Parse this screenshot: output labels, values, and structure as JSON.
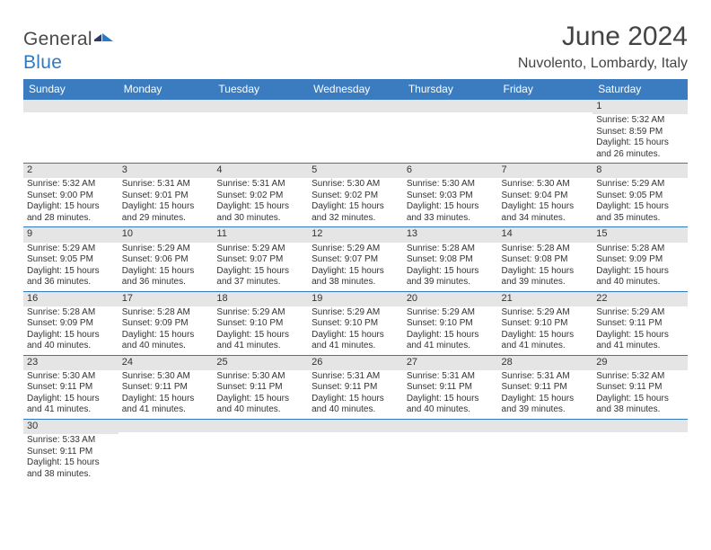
{
  "brand": {
    "part1": "General",
    "part2": "Blue"
  },
  "header": {
    "title": "June 2024",
    "location": "Nuvolento, Lombardy, Italy"
  },
  "colors": {
    "header_bg": "#3a7cbf",
    "header_text": "#ffffff",
    "daynum_bg": "#e5e5e5",
    "divider": "#2f7abf",
    "text": "#333333",
    "title_text": "#444444"
  },
  "weekdays": [
    "Sunday",
    "Monday",
    "Tuesday",
    "Wednesday",
    "Thursday",
    "Friday",
    "Saturday"
  ],
  "weeks": [
    [
      {
        "n": "",
        "lines": []
      },
      {
        "n": "",
        "lines": []
      },
      {
        "n": "",
        "lines": []
      },
      {
        "n": "",
        "lines": []
      },
      {
        "n": "",
        "lines": []
      },
      {
        "n": "",
        "lines": []
      },
      {
        "n": "1",
        "lines": [
          "Sunrise: 5:32 AM",
          "Sunset: 8:59 PM",
          "Daylight: 15 hours",
          "and 26 minutes."
        ]
      }
    ],
    [
      {
        "n": "2",
        "lines": [
          "Sunrise: 5:32 AM",
          "Sunset: 9:00 PM",
          "Daylight: 15 hours",
          "and 28 minutes."
        ]
      },
      {
        "n": "3",
        "lines": [
          "Sunrise: 5:31 AM",
          "Sunset: 9:01 PM",
          "Daylight: 15 hours",
          "and 29 minutes."
        ]
      },
      {
        "n": "4",
        "lines": [
          "Sunrise: 5:31 AM",
          "Sunset: 9:02 PM",
          "Daylight: 15 hours",
          "and 30 minutes."
        ]
      },
      {
        "n": "5",
        "lines": [
          "Sunrise: 5:30 AM",
          "Sunset: 9:02 PM",
          "Daylight: 15 hours",
          "and 32 minutes."
        ]
      },
      {
        "n": "6",
        "lines": [
          "Sunrise: 5:30 AM",
          "Sunset: 9:03 PM",
          "Daylight: 15 hours",
          "and 33 minutes."
        ]
      },
      {
        "n": "7",
        "lines": [
          "Sunrise: 5:30 AM",
          "Sunset: 9:04 PM",
          "Daylight: 15 hours",
          "and 34 minutes."
        ]
      },
      {
        "n": "8",
        "lines": [
          "Sunrise: 5:29 AM",
          "Sunset: 9:05 PM",
          "Daylight: 15 hours",
          "and 35 minutes."
        ]
      }
    ],
    [
      {
        "n": "9",
        "lines": [
          "Sunrise: 5:29 AM",
          "Sunset: 9:05 PM",
          "Daylight: 15 hours",
          "and 36 minutes."
        ]
      },
      {
        "n": "10",
        "lines": [
          "Sunrise: 5:29 AM",
          "Sunset: 9:06 PM",
          "Daylight: 15 hours",
          "and 36 minutes."
        ]
      },
      {
        "n": "11",
        "lines": [
          "Sunrise: 5:29 AM",
          "Sunset: 9:07 PM",
          "Daylight: 15 hours",
          "and 37 minutes."
        ]
      },
      {
        "n": "12",
        "lines": [
          "Sunrise: 5:29 AM",
          "Sunset: 9:07 PM",
          "Daylight: 15 hours",
          "and 38 minutes."
        ]
      },
      {
        "n": "13",
        "lines": [
          "Sunrise: 5:28 AM",
          "Sunset: 9:08 PM",
          "Daylight: 15 hours",
          "and 39 minutes."
        ]
      },
      {
        "n": "14",
        "lines": [
          "Sunrise: 5:28 AM",
          "Sunset: 9:08 PM",
          "Daylight: 15 hours",
          "and 39 minutes."
        ]
      },
      {
        "n": "15",
        "lines": [
          "Sunrise: 5:28 AM",
          "Sunset: 9:09 PM",
          "Daylight: 15 hours",
          "and 40 minutes."
        ]
      }
    ],
    [
      {
        "n": "16",
        "lines": [
          "Sunrise: 5:28 AM",
          "Sunset: 9:09 PM",
          "Daylight: 15 hours",
          "and 40 minutes."
        ]
      },
      {
        "n": "17",
        "lines": [
          "Sunrise: 5:28 AM",
          "Sunset: 9:09 PM",
          "Daylight: 15 hours",
          "and 40 minutes."
        ]
      },
      {
        "n": "18",
        "lines": [
          "Sunrise: 5:29 AM",
          "Sunset: 9:10 PM",
          "Daylight: 15 hours",
          "and 41 minutes."
        ]
      },
      {
        "n": "19",
        "lines": [
          "Sunrise: 5:29 AM",
          "Sunset: 9:10 PM",
          "Daylight: 15 hours",
          "and 41 minutes."
        ]
      },
      {
        "n": "20",
        "lines": [
          "Sunrise: 5:29 AM",
          "Sunset: 9:10 PM",
          "Daylight: 15 hours",
          "and 41 minutes."
        ]
      },
      {
        "n": "21",
        "lines": [
          "Sunrise: 5:29 AM",
          "Sunset: 9:10 PM",
          "Daylight: 15 hours",
          "and 41 minutes."
        ]
      },
      {
        "n": "22",
        "lines": [
          "Sunrise: 5:29 AM",
          "Sunset: 9:11 PM",
          "Daylight: 15 hours",
          "and 41 minutes."
        ]
      }
    ],
    [
      {
        "n": "23",
        "lines": [
          "Sunrise: 5:30 AM",
          "Sunset: 9:11 PM",
          "Daylight: 15 hours",
          "and 41 minutes."
        ]
      },
      {
        "n": "24",
        "lines": [
          "Sunrise: 5:30 AM",
          "Sunset: 9:11 PM",
          "Daylight: 15 hours",
          "and 41 minutes."
        ]
      },
      {
        "n": "25",
        "lines": [
          "Sunrise: 5:30 AM",
          "Sunset: 9:11 PM",
          "Daylight: 15 hours",
          "and 40 minutes."
        ]
      },
      {
        "n": "26",
        "lines": [
          "Sunrise: 5:31 AM",
          "Sunset: 9:11 PM",
          "Daylight: 15 hours",
          "and 40 minutes."
        ]
      },
      {
        "n": "27",
        "lines": [
          "Sunrise: 5:31 AM",
          "Sunset: 9:11 PM",
          "Daylight: 15 hours",
          "and 40 minutes."
        ]
      },
      {
        "n": "28",
        "lines": [
          "Sunrise: 5:31 AM",
          "Sunset: 9:11 PM",
          "Daylight: 15 hours",
          "and 39 minutes."
        ]
      },
      {
        "n": "29",
        "lines": [
          "Sunrise: 5:32 AM",
          "Sunset: 9:11 PM",
          "Daylight: 15 hours",
          "and 38 minutes."
        ]
      }
    ],
    [
      {
        "n": "30",
        "lines": [
          "Sunrise: 5:33 AM",
          "Sunset: 9:11 PM",
          "Daylight: 15 hours",
          "and 38 minutes."
        ]
      },
      {
        "n": "",
        "lines": []
      },
      {
        "n": "",
        "lines": []
      },
      {
        "n": "",
        "lines": []
      },
      {
        "n": "",
        "lines": []
      },
      {
        "n": "",
        "lines": []
      },
      {
        "n": "",
        "lines": []
      }
    ]
  ]
}
